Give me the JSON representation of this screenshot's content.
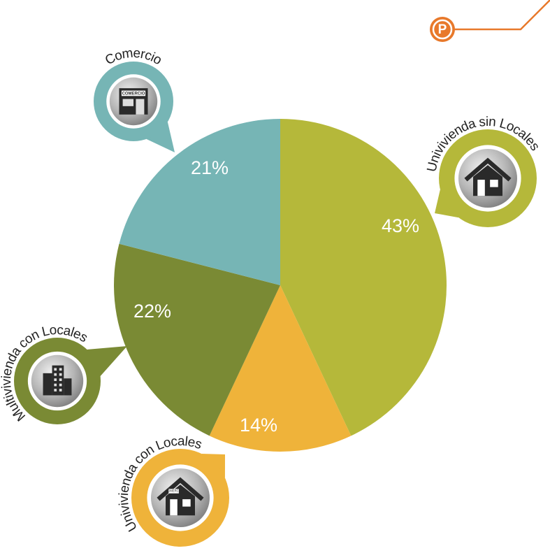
{
  "chart_data": {
    "type": "pie",
    "categories": [
      "Univivienda sin Locales",
      "Univivienda con Locales",
      "Multivivienda con Locales",
      "Comercio"
    ],
    "values": [
      43,
      14,
      22,
      21
    ],
    "value_labels": [
      "43%",
      "14%",
      "22%",
      "21%"
    ],
    "colors": [
      "#b5b83a",
      "#efb33a",
      "#7a8a34",
      "#76b5b5"
    ],
    "annotations": [
      "COMERCIO",
      "COMERCIO"
    ],
    "logo": "P"
  }
}
